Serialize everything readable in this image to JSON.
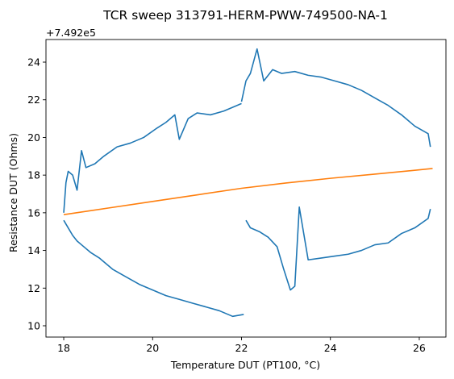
{
  "chart_data": {
    "type": "line",
    "title": "TCR sweep 313791-HERM-PWW-749500-NA-1",
    "xlabel": "Temperature DUT (PT100, °C)",
    "ylabel": "Resistance DUT (Ohms)",
    "y_offset_label": "+7.492e5",
    "xlim": [
      17.6,
      26.6
    ],
    "ylim": [
      9.4,
      25.2
    ],
    "xticks": [
      18,
      20,
      22,
      24,
      26
    ],
    "yticks": [
      10,
      12,
      14,
      16,
      18,
      20,
      22,
      24
    ],
    "grid": false,
    "series": [
      {
        "color": "#1f77b4",
        "segments": [
          {
            "x": [
              18.0,
              18.05,
              18.1,
              18.2,
              18.3,
              18.4,
              18.5,
              18.7,
              18.9,
              19.2,
              19.5,
              19.8,
              20.1,
              20.3,
              20.5,
              20.6,
              20.8,
              21.0,
              21.3,
              21.6,
              21.9,
              22.0
            ],
            "y": [
              16.0,
              17.6,
              18.2,
              18.0,
              17.2,
              19.3,
              18.4,
              18.6,
              19.0,
              19.5,
              19.7,
              20.0,
              20.5,
              20.8,
              21.2,
              19.9,
              21.0,
              21.3,
              21.2,
              21.4,
              21.7,
              21.8
            ]
          },
          {
            "x": [
              22.0,
              22.1,
              22.2,
              22.35,
              22.5,
              22.7,
              22.9,
              23.2,
              23.5,
              23.8,
              24.1,
              24.4,
              24.7,
              25.0,
              25.3,
              25.6,
              25.9,
              26.2,
              26.25
            ],
            "y": [
              21.9,
              23.0,
              23.4,
              24.7,
              23.0,
              23.6,
              23.4,
              23.5,
              23.3,
              23.2,
              23.0,
              22.8,
              22.5,
              22.1,
              21.7,
              21.2,
              20.6,
              20.2,
              19.5
            ]
          },
          {
            "x": [
              26.25,
              26.2,
              25.9,
              25.6,
              25.3,
              25.0,
              24.7,
              24.4,
              24.1,
              23.8,
              23.5,
              23.3,
              23.2,
              23.1,
              22.95,
              22.8,
              22.6,
              22.4,
              22.2,
              22.1
            ],
            "y": [
              16.2,
              15.7,
              15.2,
              14.9,
              14.4,
              14.3,
              14.0,
              13.8,
              13.7,
              13.6,
              13.5,
              16.3,
              12.1,
              11.9,
              13.0,
              14.2,
              14.7,
              15.0,
              15.2,
              15.6
            ]
          },
          {
            "x": [
              22.05,
              21.8,
              21.5,
              21.2,
              20.9,
              20.6,
              20.3,
              20.0,
              19.7,
              19.4,
              19.1,
              18.8,
              18.6,
              18.4,
              18.3,
              18.2,
              18.1,
              18.0
            ],
            "y": [
              10.6,
              10.5,
              10.8,
              11.0,
              11.2,
              11.4,
              11.6,
              11.9,
              12.2,
              12.6,
              13.0,
              13.6,
              13.9,
              14.3,
              14.5,
              14.8,
              15.2,
              15.6
            ]
          }
        ]
      },
      {
        "color": "#ff7f0e",
        "x": [
          18.0,
          19.0,
          20.0,
          21.0,
          22.0,
          23.0,
          24.0,
          25.0,
          26.3
        ],
        "y": [
          15.9,
          16.25,
          16.6,
          16.95,
          17.3,
          17.58,
          17.83,
          18.05,
          18.35
        ]
      }
    ]
  }
}
